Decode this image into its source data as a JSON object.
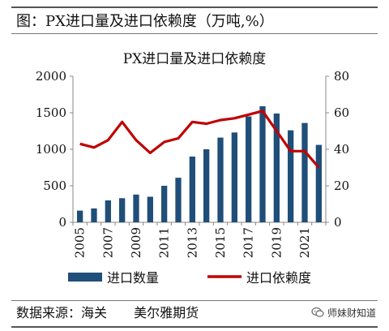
{
  "figure_title": "图：PX进口量及进口依赖度（万吨,%）",
  "source_label": "数据来源：海关",
  "source_org": "美尔雅期货",
  "watermark": {
    "icon": "wechat-icon",
    "text": "师妹财知道"
  },
  "chart_data": {
    "type": "bar+line",
    "title": "PX进口量及进口依赖度",
    "categories": [
      "2005",
      "2006",
      "2007",
      "2008",
      "2009",
      "2010",
      "2011",
      "2012",
      "2013",
      "2014",
      "2015",
      "2016",
      "2017",
      "2018",
      "2019",
      "2020",
      "2021",
      "2022"
    ],
    "x_tick_labels": [
      "2005",
      "2007",
      "2009",
      "2011",
      "2013",
      "2015",
      "2017",
      "2019",
      "2021"
    ],
    "series": [
      {
        "name": "进口数量",
        "type": "bar",
        "axis": "left",
        "color": "#1f4e79",
        "values": [
          160,
          190,
          300,
          330,
          380,
          350,
          500,
          610,
          900,
          1000,
          1160,
          1230,
          1450,
          1590,
          1490,
          1260,
          1360,
          1060
        ]
      },
      {
        "name": "进口依赖度",
        "type": "line",
        "axis": "right",
        "color": "#c00000",
        "values": [
          43,
          41,
          45,
          55,
          45,
          38,
          44,
          46,
          55,
          54,
          56,
          57,
          59,
          61,
          50,
          39,
          39,
          30
        ]
      }
    ],
    "y_left": {
      "min": 0,
      "max": 2000,
      "ticks": [
        0,
        500,
        1000,
        1500,
        2000
      ]
    },
    "y_right": {
      "min": 0,
      "max": 80,
      "ticks": [
        0,
        20,
        40,
        60,
        80
      ]
    },
    "grid": false,
    "legend_position": "bottom"
  }
}
